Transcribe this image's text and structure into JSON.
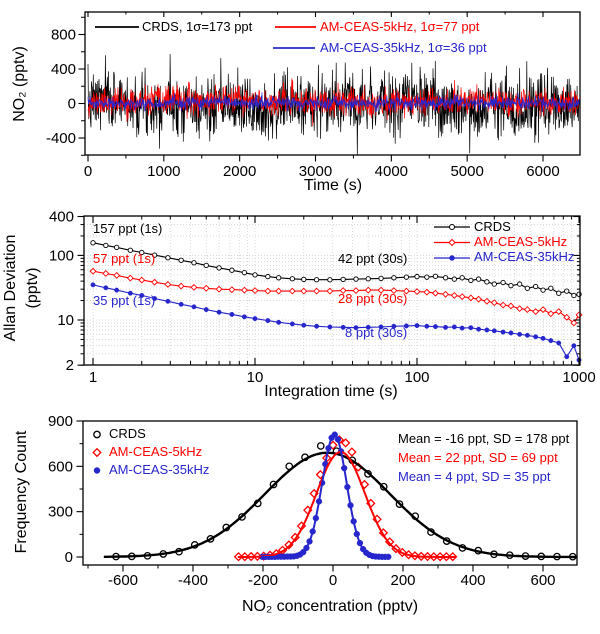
{
  "colors": {
    "crds": "#000000",
    "ceas5": "#ff0000",
    "ceas35": "#2626cc",
    "grid": "#d4d4d4",
    "frame": "#000000"
  },
  "chart_data": [
    {
      "id": "no2-time-series",
      "type": "line",
      "xlabel": "Time (s)",
      "ylabel": "NO₂ (pptv)",
      "xlim": [
        0,
        6500
      ],
      "ylim": [
        -610,
        1050
      ],
      "xticks": [
        0,
        1000,
        2000,
        3000,
        4000,
        5000,
        6000
      ],
      "xminor_step": 500,
      "yticks": [
        -400,
        0,
        400,
        800
      ],
      "yminors": [
        -600,
        -200,
        200,
        600,
        1000
      ],
      "legend": [
        {
          "label": "CRDS, 1σ=173 ppt",
          "color_key": "crds"
        },
        {
          "label": "AM-CEAS-5kHz, 1σ=77 ppt",
          "color_key": "ceas5"
        },
        {
          "label": "AM-CEAS-35kHz, 1σ=36 ppt",
          "color_key": "ceas35"
        }
      ],
      "series": [
        {
          "name": "CRDS",
          "color_key": "crds",
          "mean_ppt": -16,
          "sigma_ppt": 173,
          "n_points": 1300,
          "seed": 7,
          "drift_amp_ppt": 35
        },
        {
          "name": "AM-CEAS-5kHz",
          "color_key": "ceas5",
          "mean_ppt": 22,
          "sigma_ppt": 77,
          "n_points": 1300,
          "seed": 11,
          "drift_amp_ppt": 16
        },
        {
          "name": "AM-CEAS-35kHz",
          "color_key": "ceas35",
          "mean_ppt": 4,
          "sigma_ppt": 36,
          "n_points": 1300,
          "seed": 23,
          "drift_amp_ppt": 6
        }
      ]
    },
    {
      "id": "allan-deviation",
      "type": "line",
      "scale": "log-log",
      "xlabel": "Integration time (s)",
      "ylabel_line1": "Allan Deviation",
      "ylabel_line2": "(pptv)",
      "xlim": [
        0.88,
        1015
      ],
      "ylim": [
        1.8,
        400
      ],
      "xticks": [
        1,
        10,
        100,
        1000
      ],
      "yticks": [
        400,
        100,
        10,
        2
      ],
      "grid": "dotted",
      "legend": [
        {
          "label": "CRDS",
          "marker": "open-circle",
          "color_key": "crds"
        },
        {
          "label": "AM-CEAS-5kHz",
          "marker": "open-diamond",
          "color_key": "ceas5"
        },
        {
          "label": "AM-CEAS-35kHz",
          "marker": "filled-circle",
          "color_key": "ceas35"
        }
      ],
      "annotations": [
        {
          "text": "157 ppt (1s)",
          "color_key": "crds"
        },
        {
          "text": "57 ppt (1s)",
          "color_key": "ceas5"
        },
        {
          "text": "35 ppt (1s)",
          "color_key": "ceas35"
        },
        {
          "text": "42 ppt (30s)",
          "color_key": "crds"
        },
        {
          "text": "28 ppt (30s)",
          "color_key": "ceas5"
        },
        {
          "text": "8 ppt (30s)",
          "color_key": "ceas35"
        }
      ],
      "tau_s": [
        1,
        1.2,
        1.4,
        1.7,
        2,
        2.4,
        2.9,
        3.5,
        4.2,
        5,
        6,
        7.2,
        8.6,
        10,
        12,
        14,
        17,
        20,
        24,
        29,
        35,
        42,
        50,
        60,
        72,
        86,
        100,
        115,
        130,
        150,
        170,
        190,
        215,
        240,
        270,
        300,
        340,
        380,
        430,
        480,
        540,
        600,
        670,
        750,
        840,
        930,
        1000
      ],
      "series": [
        {
          "name": "CRDS",
          "marker": "open-circle",
          "color_key": "crds",
          "adev_ppt": [
            157,
            143,
            133,
            120,
            111,
            101,
            92,
            84,
            77,
            70,
            64,
            59,
            54,
            50,
            47,
            45,
            43.5,
            42.5,
            42,
            42,
            42.5,
            43,
            43.5,
            44,
            45,
            46,
            47,
            46,
            47.5,
            45,
            43,
            45,
            41,
            43,
            39,
            36,
            38,
            34,
            36,
            31,
            33,
            29,
            31,
            26,
            28,
            24,
            25
          ]
        },
        {
          "name": "AM-CEAS-5kHz",
          "marker": "open-diamond",
          "color_key": "ceas5",
          "adev_ppt": [
            57,
            52.5,
            49,
            44.5,
            41.5,
            38.5,
            35.5,
            33.5,
            32,
            31,
            30,
            29.5,
            29,
            28.5,
            28,
            28,
            28,
            28,
            28,
            28,
            28.5,
            28.5,
            29,
            29,
            28.5,
            28,
            27.5,
            27,
            26,
            25,
            24,
            23,
            22,
            21,
            19.5,
            18.5,
            17,
            16.5,
            15,
            14.5,
            13.5,
            14.5,
            12.5,
            13.5,
            11,
            9,
            12
          ]
        },
        {
          "name": "AM-CEAS-35kHz",
          "marker": "filled-circle",
          "color_key": "ceas35",
          "adev_ppt": [
            35,
            31.5,
            29,
            26,
            24,
            21.5,
            19.5,
            17.5,
            16,
            14.5,
            13.2,
            12.2,
            11.2,
            10.5,
            9.8,
            9.2,
            8.7,
            8.3,
            8,
            7.8,
            7.7,
            7.6,
            7.7,
            7.8,
            8,
            8.1,
            8.2,
            8,
            7.9,
            7.7,
            7.8,
            7.5,
            7.6,
            7.2,
            7,
            6.8,
            6.5,
            6.3,
            6,
            5.8,
            5.5,
            5.2,
            4.8,
            4.4,
            2.7,
            4,
            2.4
          ]
        }
      ]
    },
    {
      "id": "no2-histogram",
      "type": "scatter",
      "xlabel": "NO₂ concentration (pptv)",
      "ylabel": "Frequency Count",
      "xlim": [
        -714,
        697
      ],
      "ylim": [
        0,
        900
      ],
      "xticks": [
        -600,
        -400,
        -200,
        0,
        200,
        400,
        600
      ],
      "xminor_step": 200,
      "xminors": [
        -700,
        -500,
        -300,
        -100,
        100,
        300,
        500
      ],
      "yticks": [
        0,
        300,
        600,
        900
      ],
      "yminors": [
        150,
        450,
        750
      ],
      "legend": [
        {
          "label": "CRDS",
          "marker": "open-circle",
          "color_key": "crds"
        },
        {
          "label": "AM-CEAS-5kHz",
          "marker": "open-diamond",
          "color_key": "ceas5"
        },
        {
          "label": "AM-CEAS-35kHz",
          "marker": "filled-circle",
          "color_key": "ceas35"
        }
      ],
      "stats": [
        {
          "text": "Mean = -16 ppt, SD = 178 ppt",
          "color_key": "crds"
        },
        {
          "text": "Mean = 22 ppt, SD = 69 ppt",
          "color_key": "ceas5"
        },
        {
          "text": "Mean = 4 ppt, SD = 35 ppt",
          "color_key": "ceas35"
        }
      ],
      "series": [
        {
          "name": "CRDS",
          "marker": "open-circle",
          "color_key": "crds",
          "x": [
            -620,
            -575,
            -530,
            -485,
            -440,
            -395,
            -350,
            -305,
            -260,
            -215,
            -170,
            -125,
            -80,
            -35,
            10,
            55,
            100,
            145,
            190,
            235,
            280,
            325,
            370,
            415,
            460,
            505,
            550,
            595,
            640,
            685
          ],
          "y": [
            3,
            4,
            8,
            20,
            35,
            80,
            120,
            195,
            265,
            355,
            480,
            600,
            660,
            735,
            700,
            640,
            550,
            465,
            350,
            270,
            165,
            105,
            60,
            42,
            18,
            12,
            6,
            4,
            3,
            2
          ],
          "fit": {
            "amplitude": 690,
            "mean": -16,
            "sd": 178,
            "x_range": [
              -655,
              695
            ]
          }
        },
        {
          "name": "AM-CEAS-5kHz",
          "marker": "open-diamond",
          "color_key": "ceas5",
          "x": [
            -270,
            -252,
            -234,
            -216,
            -198,
            -180,
            -162,
            -144,
            -126,
            -108,
            -90,
            -72,
            -54,
            -36,
            -18,
            0,
            18,
            36,
            54,
            72,
            90,
            108,
            126,
            144,
            162,
            180,
            198,
            216,
            234,
            252,
            270,
            288,
            306,
            324,
            342
          ],
          "y": [
            2,
            2,
            3,
            4,
            6,
            12,
            22,
            45,
            80,
            130,
            205,
            310,
            420,
            545,
            655,
            740,
            775,
            755,
            695,
            595,
            480,
            355,
            250,
            160,
            100,
            55,
            30,
            15,
            8,
            4,
            3,
            2,
            2,
            2,
            2
          ],
          "fit": {
            "amplitude": 695,
            "mean": 22,
            "sd": 69,
            "x_range": [
              -272,
              352
            ]
          }
        },
        {
          "name": "AM-CEAS-35kHz",
          "marker": "filled-circle",
          "color_key": "ceas35",
          "x": [
            -202,
            -193,
            -184,
            -175,
            -166,
            -157,
            -148,
            -139,
            -130,
            -121,
            -112,
            -103,
            -94,
            -85,
            -76,
            -67,
            -58,
            -49,
            -40,
            -31,
            -22,
            -13,
            -4,
            5,
            14,
            23,
            32,
            41,
            50,
            59,
            68,
            77,
            86,
            95,
            104,
            113,
            122,
            131,
            140,
            149,
            158
          ],
          "y": [
            1,
            1,
            1,
            1,
            1,
            2,
            2,
            2,
            3,
            3,
            4,
            8,
            16,
            32,
            60,
            103,
            169,
            257,
            368,
            491,
            615,
            720,
            789,
            810,
            778,
            699,
            588,
            463,
            342,
            236,
            152,
            92,
            52,
            28,
            14,
            6,
            3,
            2,
            1,
            1,
            1
          ],
          "fit": {
            "amplitude": 808,
            "mean": 4,
            "sd": 35,
            "x_range": [
              -205,
              163
            ]
          }
        }
      ]
    }
  ]
}
